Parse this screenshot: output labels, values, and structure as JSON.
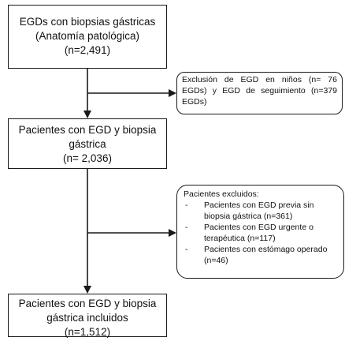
{
  "boxes": {
    "box1": {
      "lines": [
        "EGDs con biopsias gástricas",
        "(Anatomía patológica)",
        "(n=2,491)"
      ]
    },
    "box2": {
      "lines": [
        "Pacientes con EGD y biopsia",
        "gástrica",
        "(n= 2,036)"
      ]
    },
    "box3": {
      "lines": [
        "Pacientes con EGD y biopsia",
        "gástrica incluidos",
        "(n=1,512)"
      ]
    }
  },
  "exclusion1": {
    "lines": [
      "Exclusión de EGD en niños (n= 76",
      "EGDs) y EGD de seguimiento (n=379",
      "EGDs)"
    ]
  },
  "exclusion2": {
    "title": "Pacientes excluidos:",
    "items": [
      {
        "lines": [
          "Pacientes con EGD previa sin",
          "biopsia gástrica (n=361)"
        ]
      },
      {
        "lines": [
          "Pacientes con EGD urgente o",
          "terapéutica (n=117)"
        ]
      },
      {
        "lines": [
          "Pacientes con estómago operado",
          "(n=46)"
        ]
      }
    ]
  },
  "bullet_symbol": "-"
}
